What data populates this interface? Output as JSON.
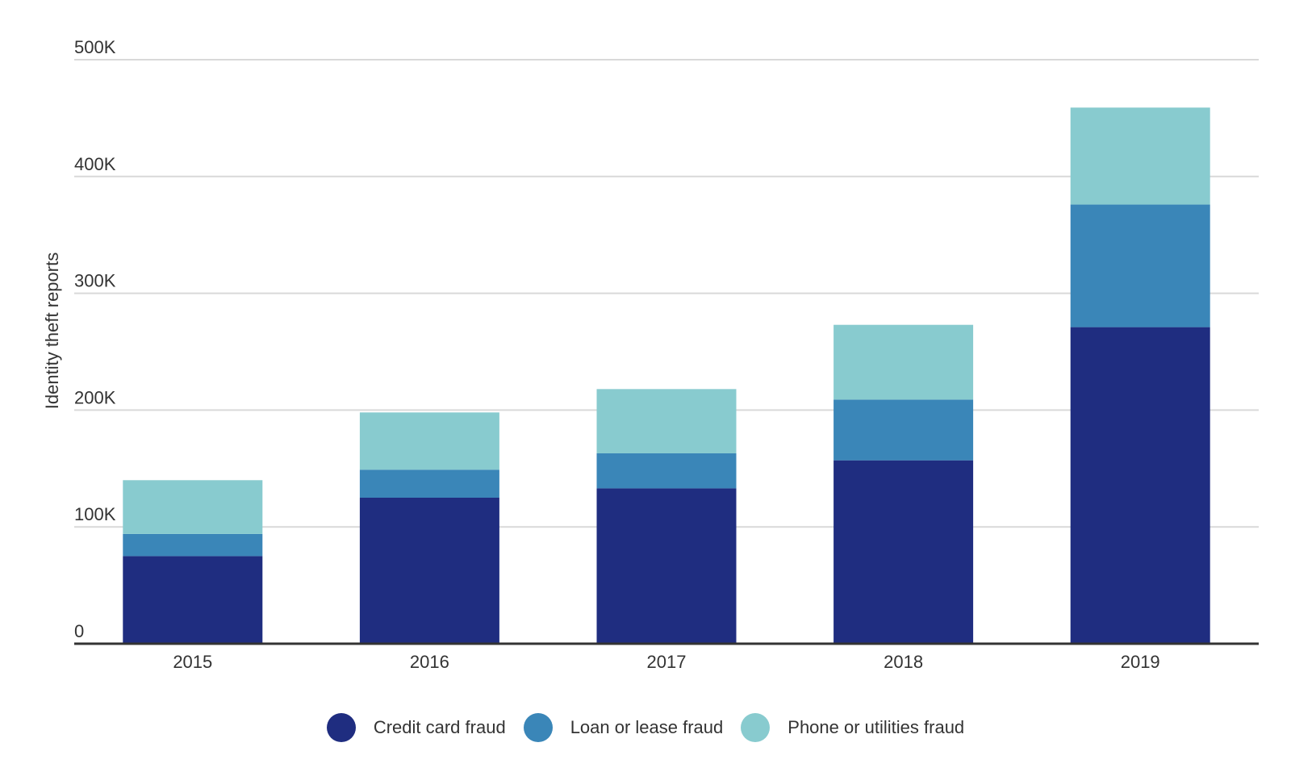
{
  "chart_data": {
    "type": "bar",
    "stacked": true,
    "title": "",
    "xlabel": "",
    "ylabel": "Identity theft reports",
    "categories": [
      "2015",
      "2016",
      "2017",
      "2018",
      "2019"
    ],
    "ylim": [
      0,
      500000
    ],
    "yticks": [
      0,
      100000,
      200000,
      300000,
      400000,
      500000
    ],
    "ytick_labels": [
      "0",
      "100K",
      "200K",
      "300K",
      "400K",
      "500K"
    ],
    "grid": true,
    "legend_position": "bottom",
    "series": [
      {
        "name": "Credit card fraud",
        "color": "#1f2d80",
        "values": [
          75000,
          125000,
          133000,
          157000,
          271000
        ]
      },
      {
        "name": "Loan or lease fraud",
        "color": "#3a86b8",
        "values": [
          19000,
          24000,
          30000,
          52000,
          105000
        ]
      },
      {
        "name": "Phone or utilities fraud",
        "color": "#88cbcf",
        "values": [
          46000,
          49000,
          55000,
          64000,
          83000
        ]
      }
    ]
  }
}
